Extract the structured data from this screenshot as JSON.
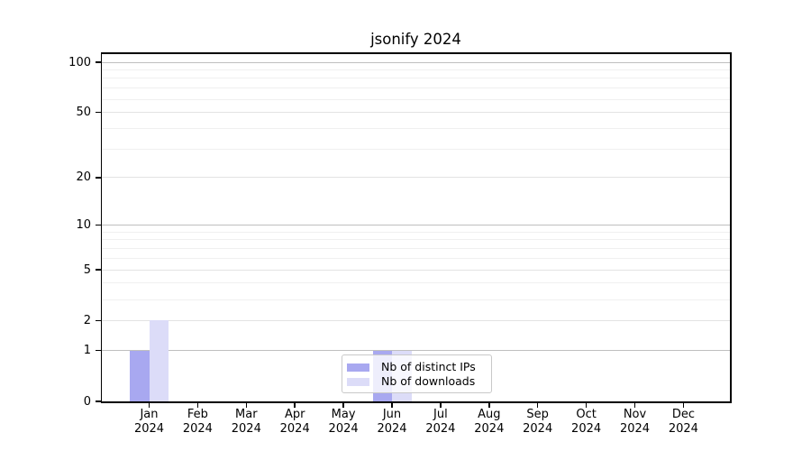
{
  "title": "jsonify 2024",
  "chart_data": {
    "type": "bar",
    "title": "jsonify 2024",
    "categories": [
      "Jan 2024",
      "Feb 2024",
      "Mar 2024",
      "Apr 2024",
      "May 2024",
      "Jun 2024",
      "Jul 2024",
      "Aug 2024",
      "Sep 2024",
      "Oct 2024",
      "Nov 2024",
      "Dec 2024"
    ],
    "series": [
      {
        "name": "Nb of distinct IPs",
        "color": "#a8a8f0",
        "values": [
          1,
          0,
          0,
          0,
          0,
          1,
          0,
          0,
          0,
          0,
          0,
          0
        ]
      },
      {
        "name": "Nb of downloads",
        "color": "#dcdcf8",
        "values": [
          2,
          0,
          0,
          0,
          0,
          1,
          0,
          0,
          0,
          0,
          0,
          0
        ]
      }
    ],
    "xlabel": "",
    "ylabel": "",
    "y_scale": "log1p",
    "ylim": [
      0,
      112
    ],
    "y_ticks": [
      0,
      1,
      2,
      5,
      10,
      20,
      50,
      100
    ],
    "y_minor_ticks": [
      3,
      4,
      6,
      7,
      8,
      9,
      30,
      40,
      60,
      70,
      80,
      90
    ],
    "grid": true,
    "legend_position": "lower center"
  },
  "legend": {
    "items": [
      {
        "label": "Nb of distinct IPs",
        "color": "#a8a8f0"
      },
      {
        "label": "Nb of downloads",
        "color": "#dcdcf8"
      }
    ]
  },
  "colors": {
    "axis": "#000000",
    "grid_power10": "#bfbfbf",
    "grid_labeled": "#e3e3e3",
    "grid_minor": "#f0f0f0",
    "background": "#ffffff"
  }
}
